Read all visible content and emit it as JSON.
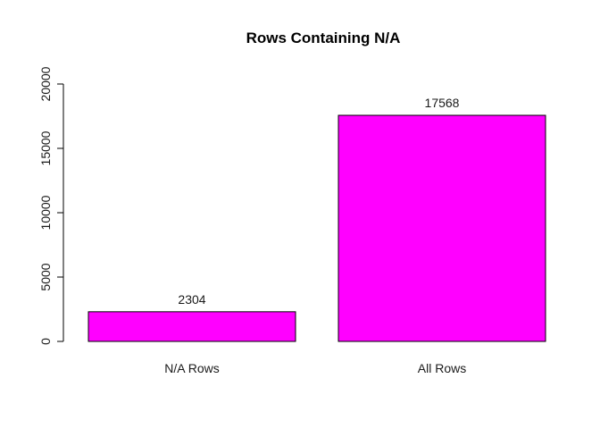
{
  "chart_data": {
    "type": "bar",
    "title": "Rows Containing N/A",
    "xlabel": "",
    "ylabel": "",
    "categories": [
      "N/A Rows",
      "All Rows"
    ],
    "values": [
      2304,
      17568
    ],
    "data_labels": [
      "2304",
      "17568"
    ],
    "ylim": [
      0,
      20000
    ],
    "y_ticks": [
      0,
      5000,
      10000,
      15000,
      20000
    ],
    "y_tick_labels": [
      "0",
      "5000",
      "10000",
      "15000",
      "20000"
    ],
    "bar_color": "#ff00ff",
    "grid": false,
    "legend": "none"
  }
}
